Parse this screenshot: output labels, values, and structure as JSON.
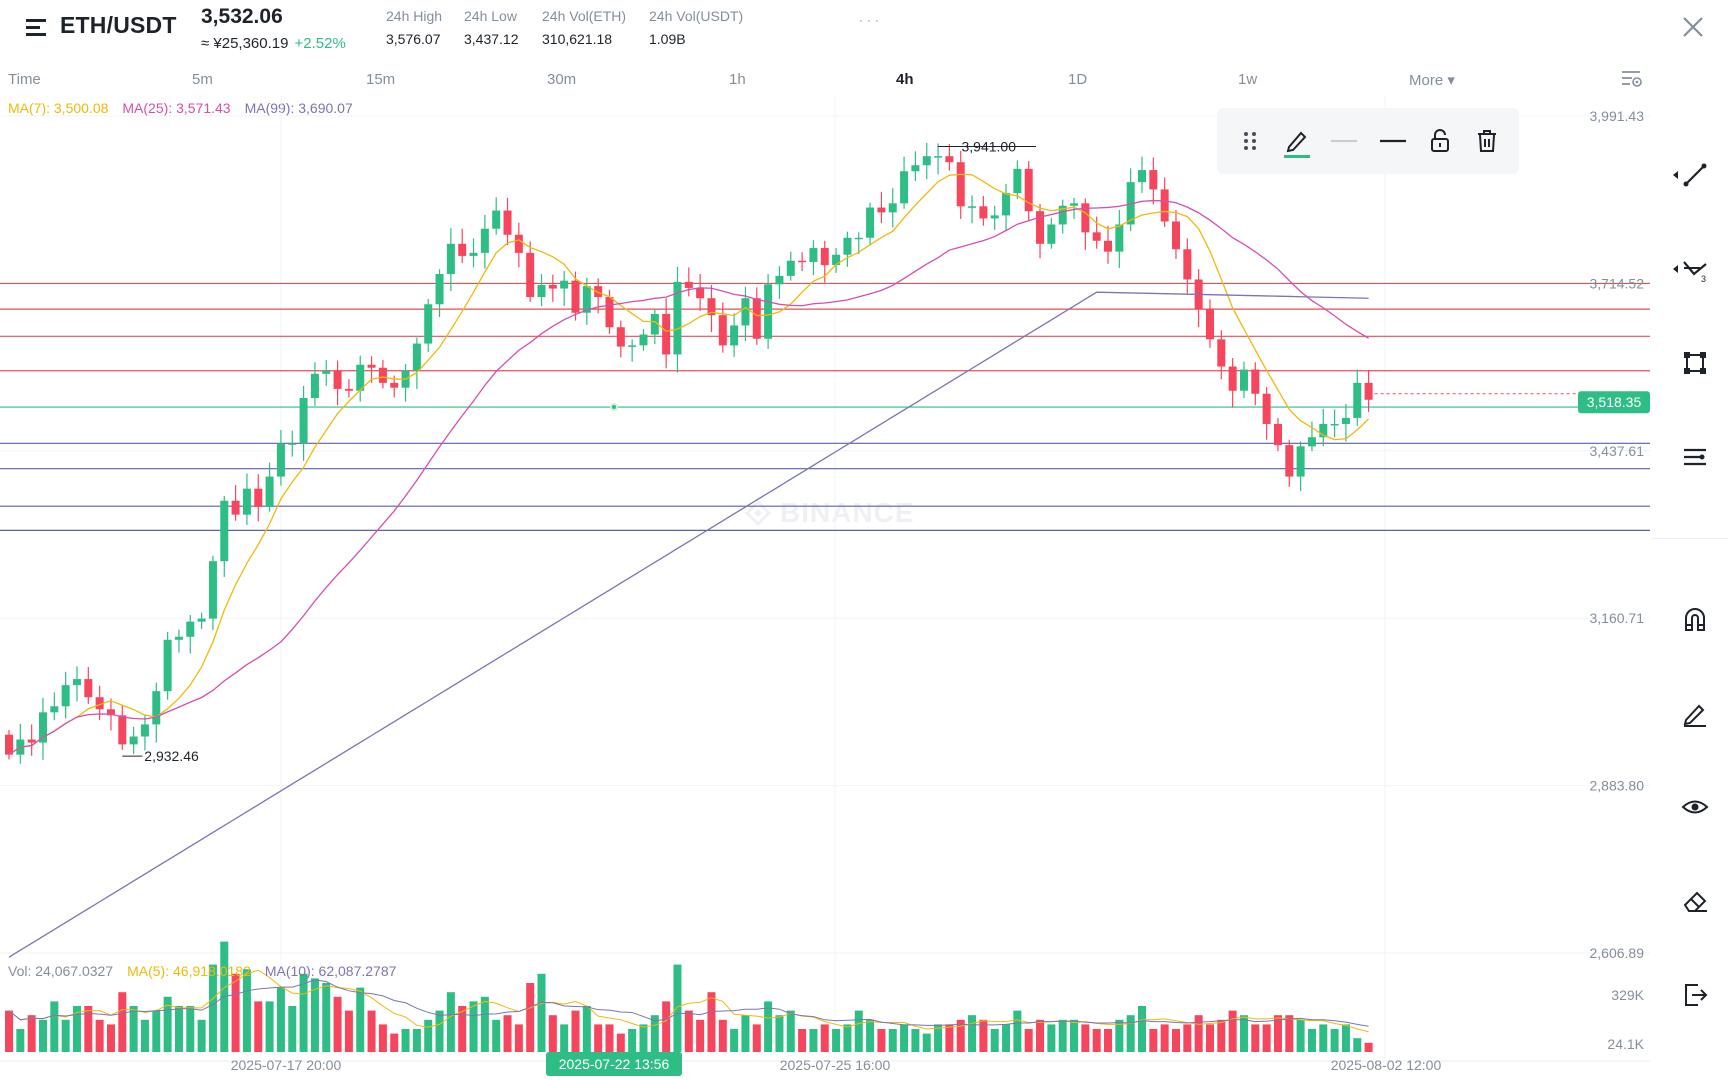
{
  "header": {
    "pair": "ETH/USDT",
    "last_price": "3,532.06",
    "cny_price": "≈ ¥25,360.19",
    "change": "+2.52%",
    "stats": [
      {
        "label": "24h High",
        "value": "3,576.07"
      },
      {
        "label": "24h Low",
        "value": "3,437.12"
      },
      {
        "label": "24h Vol(ETH)",
        "value": "310,621.18"
      },
      {
        "label": "24h Vol(USDT)",
        "value": "1.09B"
      }
    ],
    "more_dots": "···"
  },
  "timeframes": [
    {
      "label": "Time"
    },
    {
      "label": "5m"
    },
    {
      "label": "15m"
    },
    {
      "label": "30m"
    },
    {
      "label": "1h"
    },
    {
      "label": "4h"
    },
    {
      "label": "1D"
    },
    {
      "label": "1w"
    },
    {
      "label": "More ▾"
    }
  ],
  "active_timeframe": "4h",
  "ma_legend": {
    "ma7": "MA(7): 3,500.08",
    "ma25": "MA(25): 3,571.43",
    "ma99": "MA(99): 3,690.07"
  },
  "vol_legend": {
    "vol": "Vol: 24,067.0327",
    "ma5": "MA(5): 46,918.0182",
    "ma10": "MA(10): 62,087.2787"
  },
  "watermark": "BINANCE",
  "toolbar_icons": [
    "drag-handle-icon",
    "pencil-icon",
    "thin-line-icon",
    "thick-line-icon",
    "unlock-icon",
    "trash-icon"
  ],
  "sidebar_icons": [
    "trend-line-icon",
    "multi-line-icon",
    "rectangle-icon",
    "fib-icon",
    "magnet-icon",
    "pen-icon",
    "eye-icon",
    "eraser-icon",
    "exit-icon"
  ],
  "colors": {
    "up": "#2ebd85",
    "down": "#f6465d",
    "ma7": "#f0b90b",
    "ma25": "#d54fae",
    "ma99": "#7b74b5",
    "resistance": "#e0505a",
    "support": "#5b5fb0",
    "crosshair": "#2ebd85"
  },
  "chart_data": {
    "type": "candlestick",
    "y_axis_labels": [
      "3,991.43",
      "3,714.52",
      "3,437.61",
      "3,160.71",
      "2,883.80",
      "2,606.89"
    ],
    "ylim": [
      2606.89,
      3991.43
    ],
    "x_axis_labels": [
      "2025-07-17 20:00",
      "2025-07-25 16:00",
      "2025-08-02 12:00"
    ],
    "crosshair_time": "2025-07-22 13:56",
    "current_price_label": "3,518.35",
    "high_marker": "3,941.00",
    "low_marker": "2,932.46",
    "volume_axis_labels": [
      "329K",
      "24.1K"
    ],
    "horizontal_lines": [
      {
        "price": 3714.5,
        "kind": "resistance"
      },
      {
        "price": 3672,
        "kind": "resistance"
      },
      {
        "price": 3627,
        "kind": "resistance"
      },
      {
        "price": 3570,
        "kind": "resistance"
      },
      {
        "price": 3510,
        "kind": "crosshair"
      },
      {
        "price": 3450,
        "kind": "support"
      },
      {
        "price": 3408,
        "kind": "support"
      },
      {
        "price": 3346,
        "kind": "support"
      },
      {
        "price": 3306,
        "kind": "support"
      }
    ],
    "close": [
      2935,
      2960,
      2955,
      3005,
      3015,
      3050,
      3060,
      3030,
      3010,
      3000,
      2952,
      2965,
      2985,
      3040,
      3125,
      3130,
      3155,
      3160,
      3255,
      3355,
      3332,
      3375,
      3345,
      3395,
      3450,
      3450,
      3525,
      3565,
      3570,
      3540,
      3537,
      3580,
      3575,
      3550,
      3542,
      3570,
      3615,
      3680,
      3730,
      3780,
      3760,
      3765,
      3805,
      3835,
      3795,
      3765,
      3692,
      3712,
      3706,
      3719,
      3666,
      3710,
      3692,
      3642,
      3610,
      3612,
      3630,
      3664,
      3597,
      3717,
      3707,
      3690,
      3662,
      3612,
      3645,
      3690,
      3623,
      3713,
      3727,
      3752,
      3750,
      3773,
      3745,
      3762,
      3790,
      3790,
      3840,
      3832,
      3847,
      3900,
      3910,
      3925,
      3925,
      3915,
      3842,
      3842,
      3822,
      3827,
      3864,
      3904,
      3834,
      3780,
      3812,
      3843,
      3847,
      3799,
      3785,
      3767,
      3812,
      3882,
      3902,
      3870,
      3817,
      3771,
      3721,
      3672,
      3622,
      3577,
      3537,
      3572,
      3532,
      3482,
      3447,
      3395,
      3445,
      3460,
      3482,
      3482,
      3492,
      3550,
      3522
    ],
    "volume": [
      18,
      10,
      16,
      14,
      22,
      14,
      20,
      20,
      14,
      12,
      26,
      20,
      14,
      18,
      24,
      20,
      20,
      14,
      38,
      48,
      34,
      36,
      22,
      22,
      28,
      20,
      34,
      32,
      30,
      24,
      18,
      28,
      18,
      12,
      8,
      10,
      10,
      14,
      18,
      26,
      20,
      22,
      24,
      14,
      16,
      12,
      30,
      34,
      16,
      12,
      18,
      20,
      12,
      12,
      8,
      10,
      12,
      16,
      22,
      38,
      18,
      14,
      26,
      14,
      10,
      16,
      12,
      22,
      16,
      18,
      10,
      10,
      12,
      10,
      12,
      18,
      14,
      10,
      10,
      12,
      10,
      8,
      12,
      12,
      14,
      16,
      14,
      10,
      12,
      18,
      10,
      14,
      12,
      14,
      14,
      12,
      10,
      10,
      14,
      16,
      20,
      10,
      12,
      10,
      12,
      16,
      12,
      14,
      18,
      16,
      12,
      12,
      16,
      16,
      14,
      10,
      12,
      10,
      12,
      6,
      4
    ],
    "ma7_last": 3500.08,
    "ma25_last": 3571.43,
    "ma99_last": 3690.07
  }
}
